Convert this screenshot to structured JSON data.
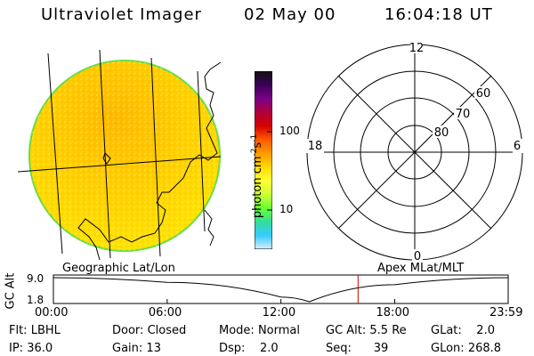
{
  "header": {
    "instrument": "Ultraviolet Imager",
    "date": "02 May 00",
    "time": "16:04:18 UT"
  },
  "colorbar": {
    "unit_label": "photon cm",
    "unit_exp1": "-2",
    "unit_s": "s",
    "unit_exp2": "-1",
    "tick_high": "100",
    "tick_low": "10",
    "colors": [
      "#111111",
      "#3a0055",
      "#7a0088",
      "#b0003a",
      "#d40000",
      "#ff5a00",
      "#ff9900",
      "#ffd800",
      "#ffff33",
      "#ccff33",
      "#66ff33",
      "#33dd99",
      "#33ccff",
      "#ddeeff"
    ]
  },
  "polar_plot": {
    "label_top": "12",
    "label_left": "18",
    "label_right": "6",
    "label_bottom": "0",
    "lat_60": "60",
    "lat_70": "70",
    "lat_80": "80"
  },
  "projection_labels": {
    "left": "Geographic Lat/Lon",
    "right": "Apex MLat/MLT"
  },
  "gc_plot": {
    "axis_title": "GC Alt",
    "y_high": "9.0",
    "y_low": "1.8",
    "x_ticks": [
      "00:00",
      "06:00",
      "12:00",
      "18:00",
      "23:59"
    ],
    "chart_data": {
      "type": "line",
      "x": [
        "00:00",
        "06:00",
        "12:00",
        "13:30",
        "18:00",
        "23:59"
      ],
      "values": [
        9.0,
        7.6,
        3.2,
        1.8,
        6.9,
        9.0
      ],
      "ylim": [
        1.8,
        9.0
      ],
      "marker_time": "16:04"
    }
  },
  "status": {
    "flt_label": "Flt:",
    "flt_value": "LBHL",
    "ip_label": "IP:",
    "ip_value": "36.0",
    "door_label": "Door:",
    "door_value": "Closed",
    "gain_label": "Gain:",
    "gain_value": "13",
    "mode_label": "Mode:",
    "mode_value": "Normal",
    "dsp_label": "Dsp:",
    "dsp_value": "2.0",
    "gcalt_label": "GC Alt:",
    "gcalt_value": "5.5 Re",
    "seq_label": "Seq:",
    "seq_value": "39",
    "glat_label": "GLat:",
    "glat_value": "2.0",
    "glon_label": "GLon:",
    "glon_value": "268.8"
  }
}
